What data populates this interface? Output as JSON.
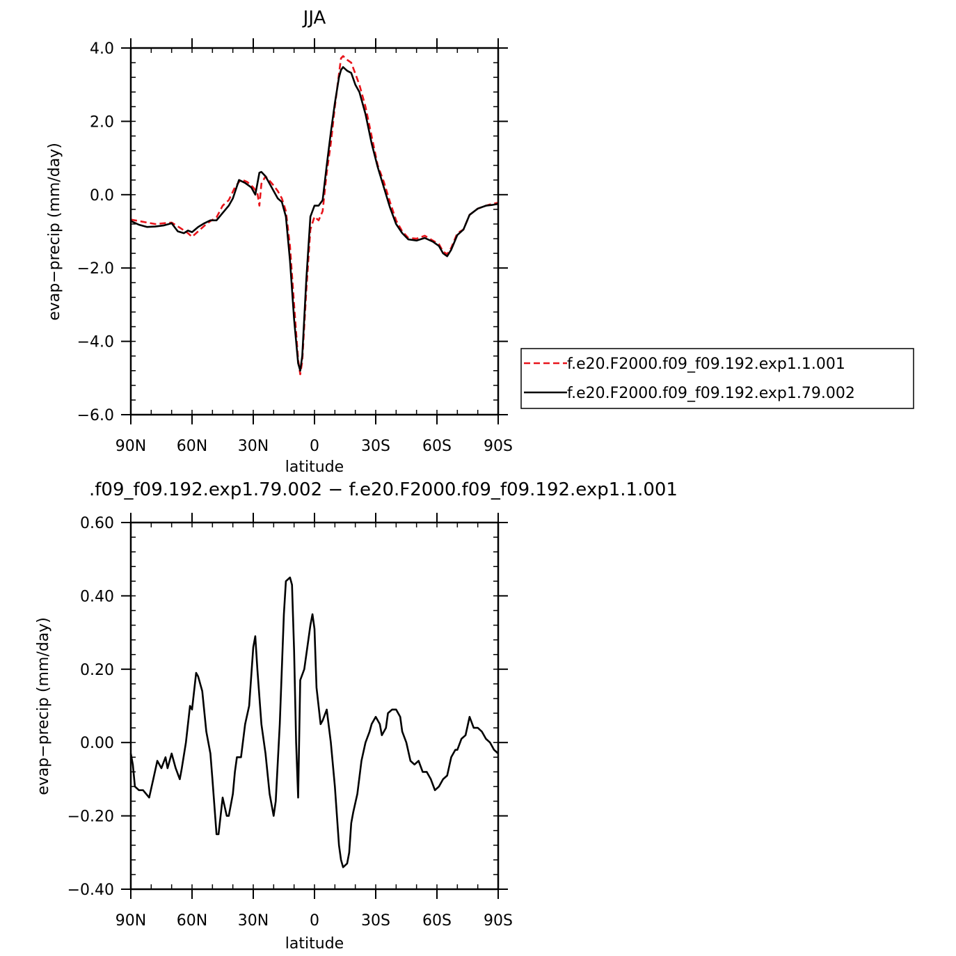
{
  "chart_data": [
    {
      "type": "line",
      "title": "JJA",
      "xlabel": "latitude",
      "ylabel": "evap−precip (mm/day)",
      "xlim": [
        90,
        -90
      ],
      "ylim": [
        -6,
        4
      ],
      "x_ticks": [
        {
          "value": 90,
          "label": "90N"
        },
        {
          "value": 60,
          "label": "60N"
        },
        {
          "value": 30,
          "label": "30N"
        },
        {
          "value": 0,
          "label": "0"
        },
        {
          "value": -30,
          "label": "30S"
        },
        {
          "value": -60,
          "label": "60S"
        },
        {
          "value": -90,
          "label": "90S"
        }
      ],
      "y_ticks": [
        {
          "value": 4,
          "label": "4.0"
        },
        {
          "value": 2,
          "label": "2.0"
        },
        {
          "value": 0,
          "label": "0.0"
        },
        {
          "value": -2,
          "label": "−2.0"
        },
        {
          "value": -4,
          "label": "−4.0"
        },
        {
          "value": -6,
          "label": "−6.0"
        }
      ],
      "legend_position": "right",
      "series": [
        {
          "name": "f.e20.F2000.f09_f09.192.exp1.1.001",
          "color": "#e8141b",
          "dash": "dashed",
          "points": [
            [
              90,
              -0.68
            ],
            [
              86,
              -0.72
            ],
            [
              82,
              -0.76
            ],
            [
              78,
              -0.8
            ],
            [
              74,
              -0.78
            ],
            [
              70,
              -0.76
            ],
            [
              66,
              -0.9
            ],
            [
              62,
              -1.05
            ],
            [
              60,
              -1.15
            ],
            [
              57,
              -1.0
            ],
            [
              54,
              -0.85
            ],
            [
              51,
              -0.72
            ],
            [
              48,
              -0.62
            ],
            [
              45,
              -0.3
            ],
            [
              42,
              -0.15
            ],
            [
              39,
              0.2
            ],
            [
              36,
              0.42
            ],
            [
              33,
              0.35
            ],
            [
              30,
              0.2
            ],
            [
              28,
              0.05
            ],
            [
              27,
              -0.3
            ],
            [
              26,
              0.3
            ],
            [
              24,
              0.5
            ],
            [
              22,
              0.38
            ],
            [
              20,
              0.25
            ],
            [
              18,
              0.1
            ],
            [
              16,
              -0.1
            ],
            [
              14,
              -0.45
            ],
            [
              12,
              -1.4
            ],
            [
              10,
              -3.0
            ],
            [
              8,
              -4.5
            ],
            [
              7,
              -4.9
            ],
            [
              6,
              -4.55
            ],
            [
              4,
              -2.6
            ],
            [
              2,
              -0.95
            ],
            [
              0,
              -0.6
            ],
            [
              -2,
              -0.7
            ],
            [
              -4,
              -0.45
            ],
            [
              -6,
              0.6
            ],
            [
              -8,
              1.4
            ],
            [
              -10,
              2.4
            ],
            [
              -12,
              3.3
            ],
            [
              -13,
              3.72
            ],
            [
              -14,
              3.78
            ],
            [
              -16,
              3.68
            ],
            [
              -18,
              3.6
            ],
            [
              -20,
              3.3
            ],
            [
              -22,
              3.0
            ],
            [
              -25,
              2.4
            ],
            [
              -28,
              1.6
            ],
            [
              -31,
              0.8
            ],
            [
              -34,
              0.35
            ],
            [
              -37,
              -0.2
            ],
            [
              -40,
              -0.7
            ],
            [
              -43,
              -1.0
            ],
            [
              -46,
              -1.18
            ],
            [
              -50,
              -1.2
            ],
            [
              -54,
              -1.12
            ],
            [
              -58,
              -1.25
            ],
            [
              -61,
              -1.35
            ],
            [
              -63,
              -1.55
            ],
            [
              -65,
              -1.62
            ],
            [
              -67,
              -1.45
            ],
            [
              -70,
              -1.05
            ],
            [
              -73,
              -0.95
            ],
            [
              -76,
              -0.55
            ],
            [
              -80,
              -0.38
            ],
            [
              -84,
              -0.3
            ],
            [
              -87,
              -0.25
            ],
            [
              -90,
              -0.22
            ]
          ]
        },
        {
          "name": "f.e20.F2000.f09_f09.192.exp1.79.002",
          "color": "#000000",
          "dash": "solid",
          "points": [
            [
              90,
              -0.72
            ],
            [
              86,
              -0.82
            ],
            [
              82,
              -0.88
            ],
            [
              78,
              -0.87
            ],
            [
              74,
              -0.84
            ],
            [
              70,
              -0.78
            ],
            [
              67,
              -1.0
            ],
            [
              64,
              -1.05
            ],
            [
              62,
              -0.98
            ],
            [
              60,
              -1.02
            ],
            [
              57,
              -0.88
            ],
            [
              54,
              -0.78
            ],
            [
              51,
              -0.7
            ],
            [
              48,
              -0.7
            ],
            [
              45,
              -0.5
            ],
            [
              42,
              -0.3
            ],
            [
              40,
              -0.1
            ],
            [
              37,
              0.4
            ],
            [
              34,
              0.32
            ],
            [
              31,
              0.2
            ],
            [
              29,
              0.0
            ],
            [
              28,
              0.3
            ],
            [
              27,
              0.6
            ],
            [
              26,
              0.62
            ],
            [
              24,
              0.5
            ],
            [
              22,
              0.3
            ],
            [
              20,
              0.1
            ],
            [
              18,
              -0.1
            ],
            [
              16,
              -0.2
            ],
            [
              14,
              -0.6
            ],
            [
              12,
              -1.8
            ],
            [
              10,
              -3.4
            ],
            [
              8,
              -4.6
            ],
            [
              7,
              -4.8
            ],
            [
              6,
              -4.4
            ],
            [
              4,
              -2.3
            ],
            [
              2,
              -0.6
            ],
            [
              0,
              -0.3
            ],
            [
              -2,
              -0.3
            ],
            [
              -4,
              -0.15
            ],
            [
              -6,
              0.8
            ],
            [
              -8,
              1.7
            ],
            [
              -10,
              2.5
            ],
            [
              -12,
              3.2
            ],
            [
              -13,
              3.4
            ],
            [
              -14,
              3.48
            ],
            [
              -16,
              3.38
            ],
            [
              -18,
              3.32
            ],
            [
              -20,
              3.0
            ],
            [
              -22,
              2.8
            ],
            [
              -25,
              2.2
            ],
            [
              -28,
              1.4
            ],
            [
              -31,
              0.75
            ],
            [
              -34,
              0.2
            ],
            [
              -37,
              -0.35
            ],
            [
              -40,
              -0.8
            ],
            [
              -43,
              -1.05
            ],
            [
              -46,
              -1.22
            ],
            [
              -50,
              -1.25
            ],
            [
              -54,
              -1.18
            ],
            [
              -58,
              -1.28
            ],
            [
              -61,
              -1.4
            ],
            [
              -63,
              -1.6
            ],
            [
              -65,
              -1.68
            ],
            [
              -67,
              -1.5
            ],
            [
              -70,
              -1.1
            ],
            [
              -73,
              -0.95
            ],
            [
              -76,
              -0.55
            ],
            [
              -80,
              -0.38
            ],
            [
              -84,
              -0.3
            ],
            [
              -87,
              -0.28
            ],
            [
              -90,
              -0.25
            ]
          ]
        }
      ]
    },
    {
      "type": "line",
      "title": ".f09_f09.192.exp1.79.002 − f.e20.F2000.f09_f09.192.exp1.1.001",
      "xlabel": "latitude",
      "ylabel": "evap−precip (mm/day)",
      "xlim": [
        90,
        -90
      ],
      "ylim": [
        -0.4,
        0.6
      ],
      "x_ticks": [
        {
          "value": 90,
          "label": "90N"
        },
        {
          "value": 60,
          "label": "60N"
        },
        {
          "value": 30,
          "label": "30N"
        },
        {
          "value": 0,
          "label": "0"
        },
        {
          "value": -30,
          "label": "30S"
        },
        {
          "value": -60,
          "label": "60S"
        },
        {
          "value": -90,
          "label": "90S"
        }
      ],
      "y_ticks": [
        {
          "value": 0.6,
          "label": "0.60"
        },
        {
          "value": 0.4,
          "label": "0.40"
        },
        {
          "value": 0.2,
          "label": "0.20"
        },
        {
          "value": 0.0,
          "label": "0.00"
        },
        {
          "value": -0.2,
          "label": "−0.20"
        },
        {
          "value": -0.4,
          "label": "−0.40"
        }
      ],
      "series": [
        {
          "color": "#000000",
          "dash": "solid",
          "points": [
            [
              90,
              -0.03
            ],
            [
              89,
              -0.06
            ],
            [
              88,
              -0.12
            ],
            [
              86,
              -0.13
            ],
            [
              84,
              -0.13
            ],
            [
              81,
              -0.15
            ],
            [
              79,
              -0.1
            ],
            [
              77,
              -0.05
            ],
            [
              75,
              -0.07
            ],
            [
              73,
              -0.04
            ],
            [
              72,
              -0.07
            ],
            [
              70,
              -0.03
            ],
            [
              68,
              -0.07
            ],
            [
              66,
              -0.1
            ],
            [
              65,
              -0.07
            ],
            [
              63,
              0.0
            ],
            [
              61,
              0.1
            ],
            [
              60,
              0.09
            ],
            [
              58,
              0.19
            ],
            [
              57,
              0.18
            ],
            [
              55,
              0.14
            ],
            [
              53,
              0.03
            ],
            [
              51,
              -0.03
            ],
            [
              50,
              -0.1
            ],
            [
              48,
              -0.25
            ],
            [
              47,
              -0.25
            ],
            [
              45,
              -0.15
            ],
            [
              43,
              -0.2
            ],
            [
              42,
              -0.2
            ],
            [
              40,
              -0.14
            ],
            [
              39,
              -0.08
            ],
            [
              38,
              -0.04
            ],
            [
              36,
              -0.04
            ],
            [
              34,
              0.05
            ],
            [
              32,
              0.1
            ],
            [
              30,
              0.26
            ],
            [
              29,
              0.29
            ],
            [
              28,
              0.2
            ],
            [
              26,
              0.05
            ],
            [
              24,
              -0.03
            ],
            [
              22,
              -0.14
            ],
            [
              20,
              -0.2
            ],
            [
              19,
              -0.16
            ],
            [
              17,
              0.05
            ],
            [
              15,
              0.35
            ],
            [
              14,
              0.44
            ],
            [
              12,
              0.45
            ],
            [
              11,
              0.43
            ],
            [
              10,
              0.25
            ],
            [
              9,
              0.0
            ],
            [
              8,
              -0.15
            ],
            [
              7,
              0.17
            ],
            [
              5,
              0.2
            ],
            [
              3,
              0.28
            ],
            [
              2,
              0.32
            ],
            [
              1,
              0.35
            ],
            [
              0,
              0.31
            ],
            [
              -1,
              0.15
            ],
            [
              -3,
              0.05
            ],
            [
              -4,
              0.06
            ],
            [
              -6,
              0.09
            ],
            [
              -8,
              0.0
            ],
            [
              -10,
              -0.12
            ],
            [
              -12,
              -0.28
            ],
            [
              -13,
              -0.32
            ],
            [
              -14,
              -0.34
            ],
            [
              -16,
              -0.33
            ],
            [
              -17,
              -0.3
            ],
            [
              -18,
              -0.22
            ],
            [
              -19,
              -0.19
            ],
            [
              -21,
              -0.14
            ],
            [
              -23,
              -0.05
            ],
            [
              -25,
              0.0
            ],
            [
              -27,
              0.03
            ],
            [
              -28,
              0.05
            ],
            [
              -30,
              0.07
            ],
            [
              -32,
              0.05
            ],
            [
              -33,
              0.02
            ],
            [
              -35,
              0.04
            ],
            [
              -36,
              0.08
            ],
            [
              -38,
              0.09
            ],
            [
              -40,
              0.09
            ],
            [
              -42,
              0.07
            ],
            [
              -43,
              0.03
            ],
            [
              -45,
              0.0
            ],
            [
              -47,
              -0.05
            ],
            [
              -49,
              -0.06
            ],
            [
              -51,
              -0.05
            ],
            [
              -53,
              -0.08
            ],
            [
              -55,
              -0.08
            ],
            [
              -57,
              -0.1
            ],
            [
              -59,
              -0.13
            ],
            [
              -61,
              -0.12
            ],
            [
              -63,
              -0.1
            ],
            [
              -65,
              -0.09
            ],
            [
              -67,
              -0.04
            ],
            [
              -69,
              -0.02
            ],
            [
              -70,
              -0.02
            ],
            [
              -72,
              0.01
            ],
            [
              -74,
              0.02
            ],
            [
              -76,
              0.07
            ],
            [
              -78,
              0.04
            ],
            [
              -80,
              0.04
            ],
            [
              -82,
              0.03
            ],
            [
              -84,
              0.01
            ],
            [
              -86,
              0.0
            ],
            [
              -88,
              -0.02
            ],
            [
              -90,
              -0.03
            ]
          ]
        }
      ]
    }
  ]
}
